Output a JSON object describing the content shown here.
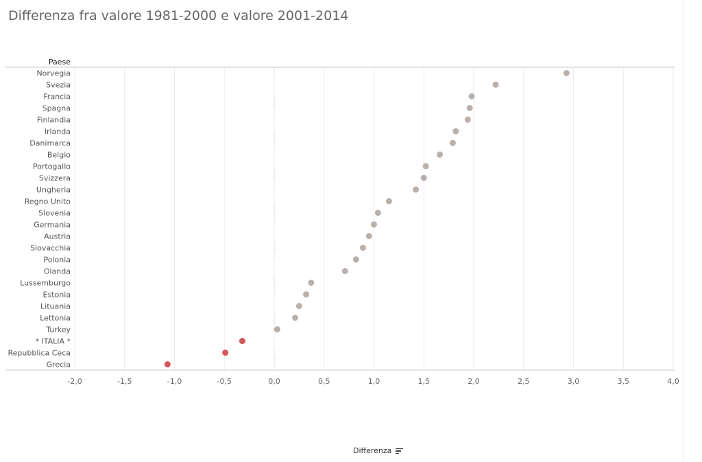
{
  "title": "Differenza fra valore 1981-2000 e valore 2001-2014",
  "row_header": "Paese",
  "axis_title": "Differenza",
  "colors": {
    "default": "#b9b0ac",
    "highlight": "#d45658",
    "grid": "#ebebeb",
    "zero": "#bdbdbd"
  },
  "chart_data": {
    "type": "scatter",
    "orientation": "horizontal-dot",
    "x_label": "Differenza",
    "y_label": "Paese",
    "xlim": [
      -2.0,
      4.0
    ],
    "x_ticks": [
      "-2,0",
      "-1,5",
      "-1,0",
      "-0,5",
      "0,0",
      "0,5",
      "1,0",
      "1,5",
      "2,0",
      "2,5",
      "3,0",
      "3,5",
      "4,0"
    ],
    "x_tick_values": [
      -2.0,
      -1.5,
      -1.0,
      -0.5,
      0.0,
      0.5,
      1.0,
      1.5,
      2.0,
      2.5,
      3.0,
      3.5,
      4.0
    ],
    "points": [
      {
        "label": "Norvegia",
        "value": 2.93,
        "highlight": false
      },
      {
        "label": "Svezia",
        "value": 2.22,
        "highlight": false
      },
      {
        "label": "Francia",
        "value": 1.98,
        "highlight": false
      },
      {
        "label": "Spagna",
        "value": 1.96,
        "highlight": false
      },
      {
        "label": "Finlandia",
        "value": 1.94,
        "highlight": false
      },
      {
        "label": "Irlanda",
        "value": 1.82,
        "highlight": false
      },
      {
        "label": "Danimarca",
        "value": 1.79,
        "highlight": false
      },
      {
        "label": "Belgio",
        "value": 1.66,
        "highlight": false
      },
      {
        "label": "Portogallo",
        "value": 1.52,
        "highlight": false
      },
      {
        "label": "Svizzera",
        "value": 1.5,
        "highlight": false
      },
      {
        "label": "Ungheria",
        "value": 1.42,
        "highlight": false
      },
      {
        "label": "Regno Unito",
        "value": 1.15,
        "highlight": false
      },
      {
        "label": "Slovenia",
        "value": 1.04,
        "highlight": false
      },
      {
        "label": "Germania",
        "value": 1.0,
        "highlight": false
      },
      {
        "label": "Austria",
        "value": 0.95,
        "highlight": false
      },
      {
        "label": "Slovacchia",
        "value": 0.89,
        "highlight": false
      },
      {
        "label": "Polonia",
        "value": 0.82,
        "highlight": false
      },
      {
        "label": "Olanda",
        "value": 0.71,
        "highlight": false
      },
      {
        "label": "Lussemburgo",
        "value": 0.37,
        "highlight": false
      },
      {
        "label": "Estonia",
        "value": 0.32,
        "highlight": false
      },
      {
        "label": "Lituania",
        "value": 0.25,
        "highlight": false
      },
      {
        "label": "Lettonia",
        "value": 0.21,
        "highlight": false
      },
      {
        "label": "Turkey",
        "value": 0.03,
        "highlight": false
      },
      {
        "label": "* ITALIA *",
        "value": -0.32,
        "highlight": true
      },
      {
        "label": "Repubblica Ceca",
        "value": -0.49,
        "highlight": true
      },
      {
        "label": "Grecia",
        "value": -1.07,
        "highlight": true
      }
    ]
  }
}
